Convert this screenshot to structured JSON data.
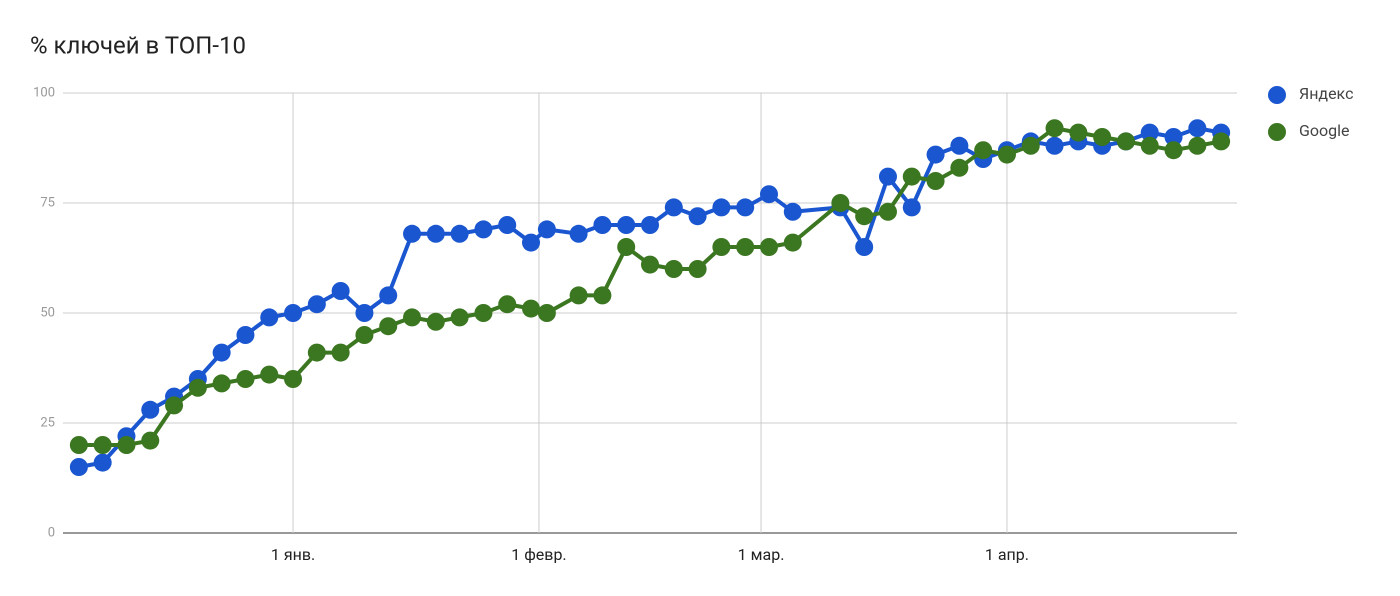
{
  "chart_data": {
    "type": "line",
    "title": "% ключей в ТОП-10",
    "x": [
      -27,
      -24,
      -21,
      -18,
      -15,
      -12,
      -9,
      -6,
      -3,
      0,
      3,
      6,
      9,
      12,
      15,
      18,
      21,
      24,
      27,
      30,
      32,
      36,
      39,
      42,
      45,
      48,
      51,
      54,
      57,
      60,
      63,
      69,
      72,
      75,
      78,
      81,
      84,
      87,
      90,
      93,
      96,
      99,
      102,
      105,
      108,
      111,
      114,
      117
    ],
    "series": [
      {
        "name": "Яндекс",
        "color": "#1a56d0",
        "values": [
          15,
          16,
          22,
          28,
          31,
          35,
          41,
          45,
          49,
          50,
          52,
          55,
          50,
          54,
          68,
          68,
          68,
          69,
          70,
          66,
          69,
          68,
          70,
          70,
          70,
          74,
          72,
          74,
          74,
          77,
          73,
          74,
          65,
          81,
          74,
          86,
          88,
          85,
          87,
          89,
          88,
          89,
          88,
          89,
          91,
          90,
          92,
          91
        ]
      },
      {
        "name": "Google",
        "color": "#3b7620",
        "values": [
          20,
          20,
          20,
          21,
          29,
          33,
          34,
          35,
          36,
          35,
          41,
          41,
          45,
          47,
          49,
          48,
          49,
          50,
          52,
          51,
          50,
          54,
          54,
          65,
          61,
          60,
          60,
          65,
          65,
          65,
          66,
          75,
          72,
          73,
          81,
          80,
          83,
          87,
          86,
          88,
          92,
          91,
          90,
          89,
          88,
          87,
          88,
          89
        ]
      }
    ],
    "xlim": [
      -29,
      119
    ],
    "xticks": [
      {
        "value": 0,
        "label": "1 янв."
      },
      {
        "value": 31,
        "label": "1 февр."
      },
      {
        "value": 59,
        "label": "1 мар."
      },
      {
        "value": 90,
        "label": "1 апр."
      }
    ],
    "ylim": [
      0,
      100
    ],
    "yticks": [
      0,
      25,
      50,
      75,
      100
    ],
    "grid": true,
    "legend": "right"
  }
}
